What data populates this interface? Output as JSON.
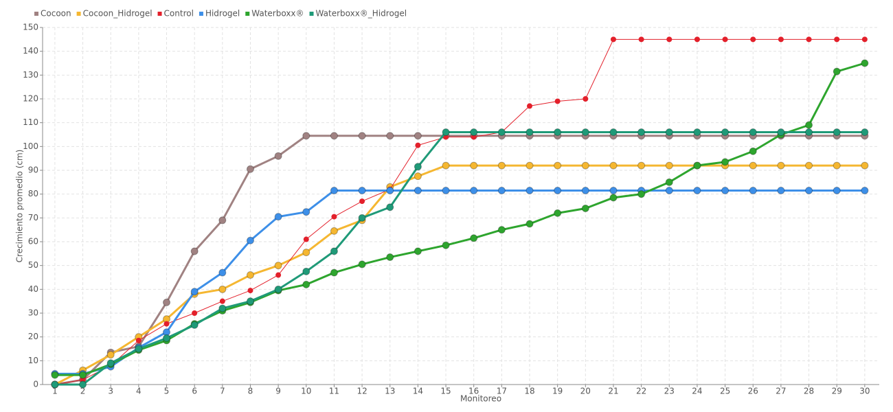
{
  "chart_data": {
    "type": "line",
    "x_label": "Monitoreo",
    "y_label": "Crecimiento promedio (cm)",
    "x": [
      1,
      2,
      3,
      4,
      5,
      6,
      7,
      8,
      9,
      10,
      11,
      12,
      13,
      14,
      15,
      16,
      17,
      18,
      19,
      20,
      21,
      22,
      23,
      24,
      25,
      26,
      27,
      28,
      29,
      30
    ],
    "xlim": [
      0.56,
      30.52
    ],
    "xticks": [
      1,
      2,
      3,
      4,
      5,
      6,
      7,
      8,
      9,
      10,
      11,
      12,
      13,
      14,
      15,
      16,
      17,
      18,
      19,
      20,
      21,
      22,
      23,
      24,
      25,
      26,
      27,
      28,
      29,
      30
    ],
    "ylim": [
      0,
      150
    ],
    "yticks": [
      0,
      10,
      20,
      30,
      40,
      50,
      60,
      70,
      80,
      90,
      100,
      110,
      120,
      130,
      140,
      150
    ],
    "grid": true,
    "legend": "top-left",
    "series": [
      {
        "name": "Cocoon",
        "color": "#a08282",
        "line_width": 3,
        "marker_size": 5,
        "values": [
          0,
          2,
          13.5,
          16,
          34.5,
          56,
          69,
          90.5,
          96,
          104.5,
          104.5,
          104.5,
          104.5,
          104.5,
          104.5,
          104.5,
          104.5,
          104.5,
          104.5,
          104.5,
          104.5,
          104.5,
          104.5,
          104.5,
          104.5,
          104.5,
          104.5,
          104.5,
          104.5,
          104.5
        ]
      },
      {
        "name": "Cocoon_Hidrogel",
        "color": "#f5b731",
        "line_width": 3,
        "marker_size": 5,
        "values": [
          0,
          6,
          12.5,
          20,
          27.5,
          38,
          40,
          46,
          50,
          55.5,
          64.5,
          69,
          83,
          87.5,
          92,
          92,
          92,
          92,
          92,
          92,
          92,
          92,
          92,
          92,
          92,
          92,
          92,
          92,
          92,
          92
        ]
      },
      {
        "name": "Control",
        "color": "#e3202b",
        "line_width": 1,
        "marker_size": 4,
        "values": [
          0,
          2,
          8,
          18.5,
          25.5,
          30,
          35,
          39.5,
          46,
          61,
          70.5,
          77,
          82,
          100.5,
          104,
          104,
          106,
          117,
          119,
          120,
          145,
          145,
          145,
          145,
          145,
          145,
          145,
          145,
          145,
          145
        ]
      },
      {
        "name": "Hidrogel",
        "color": "#3d8fe8",
        "line_width": 3,
        "marker_size": 5,
        "values": [
          4.5,
          4.5,
          7.5,
          15.5,
          22,
          39,
          47,
          60.5,
          70.5,
          72.5,
          81.5,
          81.5,
          81.5,
          81.5,
          81.5,
          81.5,
          81.5,
          81.5,
          81.5,
          81.5,
          81.5,
          81.5,
          81.5,
          81.5,
          81.5,
          81.5,
          81.5,
          81.5,
          81.5,
          81.5
        ]
      },
      {
        "name": "Waterboxx®",
        "color": "#2ea52e",
        "line_width": 3,
        "marker_size": 5,
        "values": [
          4,
          4,
          8.5,
          14.5,
          18.5,
          25.5,
          31,
          34.5,
          39.5,
          42,
          47,
          50.5,
          53.5,
          56,
          58.5,
          61.5,
          65,
          67.5,
          72,
          74,
          78.5,
          80,
          85,
          92,
          93.5,
          98,
          105,
          109,
          131.5,
          135
        ]
      },
      {
        "name": "Waterboxx®_Hidrogel",
        "color": "#1f9a78",
        "line_width": 3,
        "marker_size": 5,
        "values": [
          0,
          0,
          9,
          15,
          19.5,
          25,
          32,
          35,
          40,
          47.5,
          56,
          70,
          74.5,
          91.5,
          106,
          106,
          106,
          106,
          106,
          106,
          106,
          106,
          106,
          106,
          106,
          106,
          106,
          106,
          106,
          106
        ]
      }
    ]
  }
}
